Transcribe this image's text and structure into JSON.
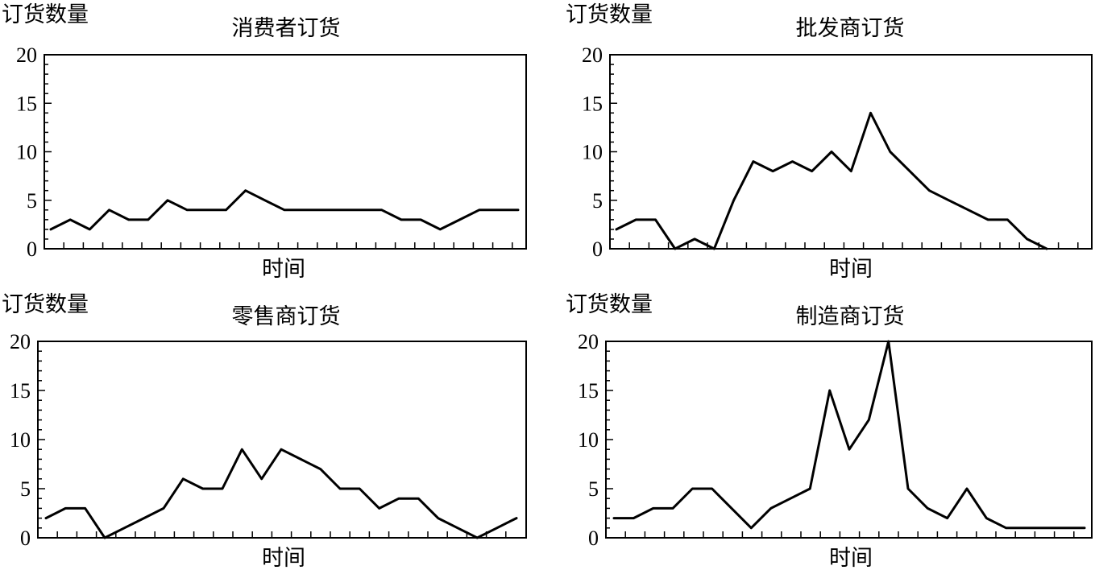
{
  "chart_data": [
    {
      "type": "line",
      "title": "消费者订货",
      "ylabel": "订货数量",
      "xlabel": "时间",
      "ylim": [
        0,
        20
      ],
      "yticks": [
        0,
        5,
        10,
        15,
        20
      ],
      "x": [
        1,
        2,
        3,
        4,
        5,
        6,
        7,
        8,
        9,
        10,
        11,
        12,
        13,
        14,
        15,
        16,
        17,
        18,
        19,
        20,
        21,
        22,
        23,
        24,
        25
      ],
      "values": [
        2,
        3,
        2,
        4,
        3,
        3,
        5,
        4,
        4,
        4,
        6,
        5,
        4,
        4,
        4,
        4,
        4,
        4,
        3,
        3,
        2,
        3,
        4,
        4,
        4
      ]
    },
    {
      "type": "line",
      "title": "批发商订货",
      "ylabel": "订货数量",
      "xlabel": "时间",
      "ylim": [
        0,
        20
      ],
      "yticks": [
        0,
        5,
        10,
        15,
        20
      ],
      "x": [
        1,
        2,
        3,
        4,
        5,
        6,
        7,
        8,
        9,
        10,
        11,
        12,
        13,
        14,
        15,
        16,
        17,
        18,
        19,
        20,
        21,
        22,
        23
      ],
      "values": [
        2,
        3,
        3,
        0,
        1,
        0,
        5,
        9,
        8,
        9,
        8,
        10,
        8,
        14,
        10,
        8,
        6,
        5,
        4,
        3,
        3,
        1,
        0
      ]
    },
    {
      "type": "line",
      "title": "零售商订货",
      "ylabel": "订货数量",
      "xlabel": "时间",
      "ylim": [
        0,
        20
      ],
      "yticks": [
        0,
        5,
        10,
        15,
        20
      ],
      "x": [
        1,
        2,
        3,
        4,
        5,
        6,
        7,
        8,
        9,
        10,
        11,
        12,
        13,
        14,
        15,
        16,
        17,
        18,
        19,
        20,
        21,
        22,
        23,
        24,
        25
      ],
      "values": [
        2,
        3,
        3,
        0,
        1,
        2,
        3,
        6,
        5,
        5,
        9,
        6,
        9,
        8,
        7,
        5,
        5,
        3,
        4,
        4,
        2,
        1,
        0,
        1,
        2
      ]
    },
    {
      "type": "line",
      "title": "制造商订货",
      "ylabel": "订货数量",
      "xlabel": "时间",
      "ylim": [
        0,
        20
      ],
      "yticks": [
        0,
        5,
        10,
        15,
        20
      ],
      "x": [
        1,
        2,
        3,
        4,
        5,
        6,
        7,
        8,
        9,
        10,
        11,
        12,
        13,
        14,
        15,
        16,
        17,
        18,
        19,
        20,
        21,
        22,
        23,
        24,
        25
      ],
      "values": [
        2,
        2,
        3,
        3,
        5,
        5,
        3,
        1,
        3,
        4,
        5,
        15,
        9,
        12,
        20,
        5,
        3,
        2,
        5,
        2,
        1,
        1,
        1,
        1,
        1
      ]
    }
  ]
}
